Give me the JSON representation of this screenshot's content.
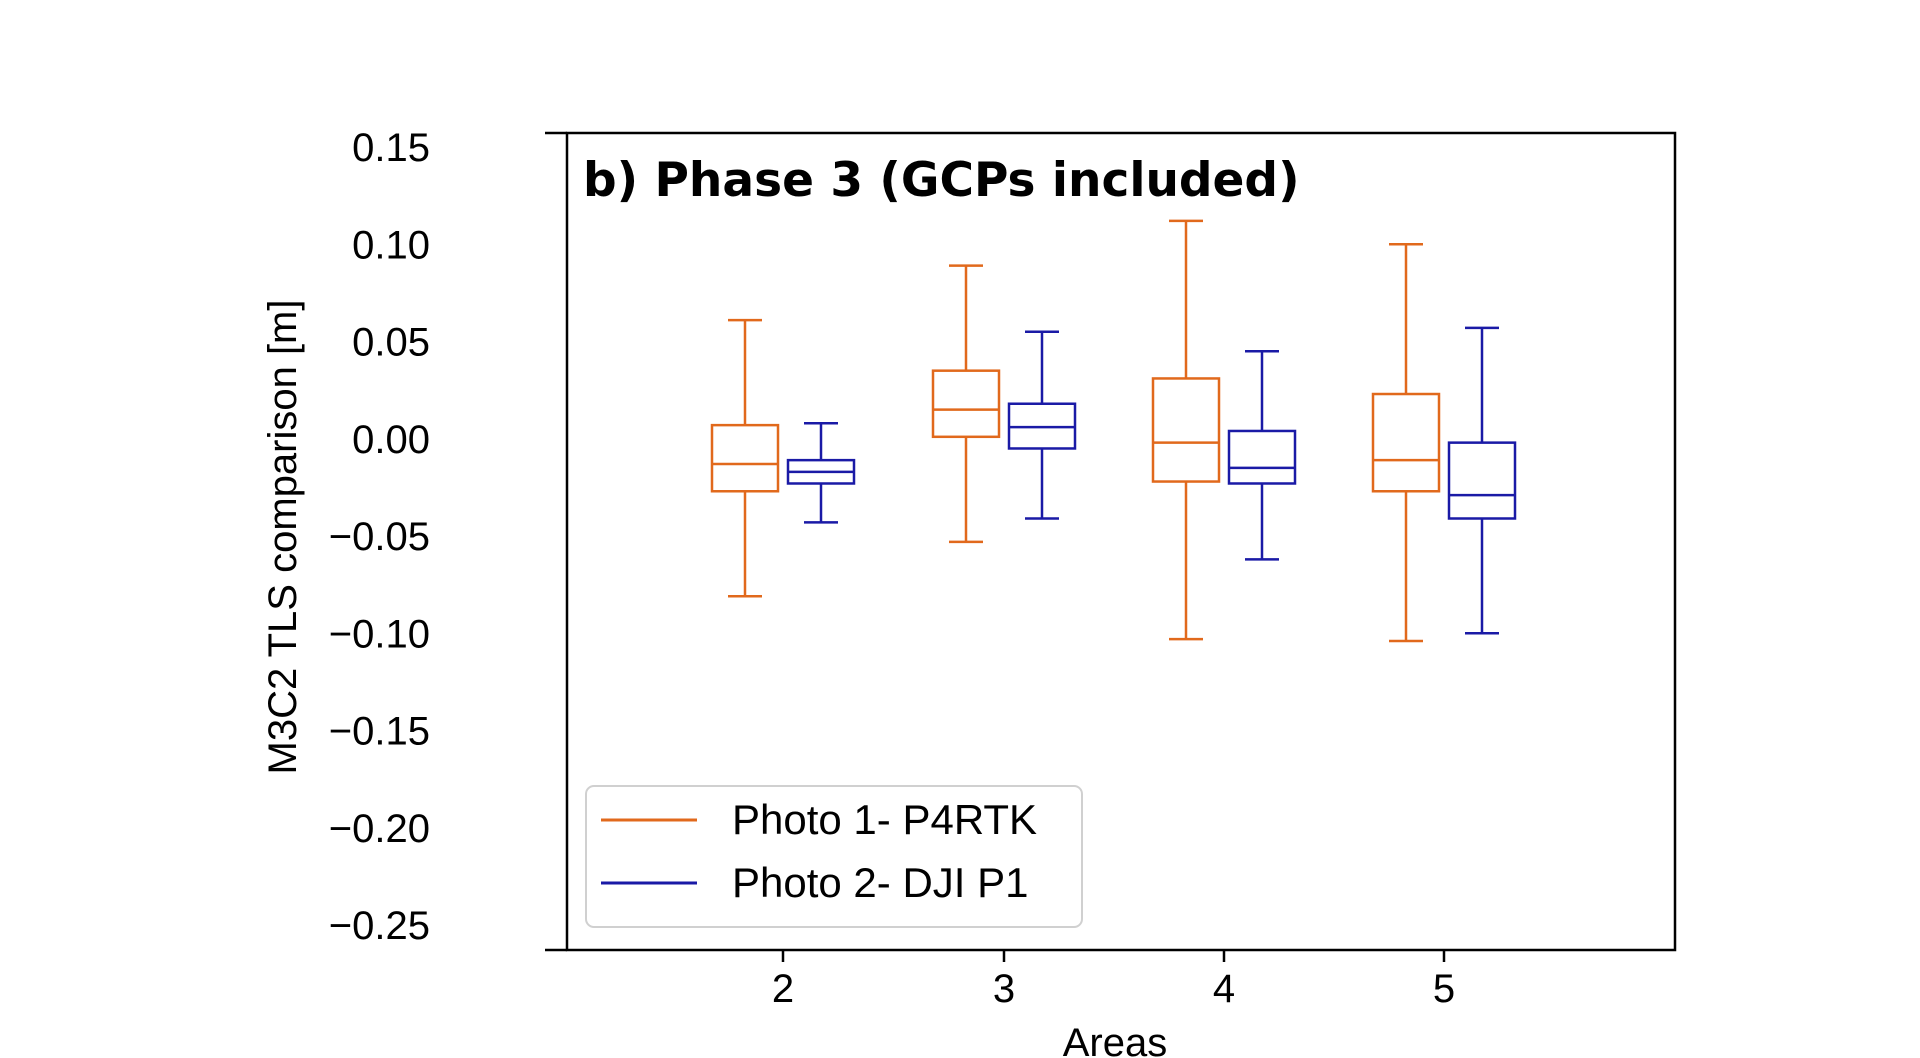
{
  "chart_data": {
    "type": "box",
    "title": "b) Phase 3 (GCPs included)",
    "xlabel": "Areas",
    "ylabel": "M3C2 TLS comparison [m]",
    "ylim": [
      -0.25,
      0.15
    ],
    "y_ticks": [
      "0.15",
      "0.10",
      "0.05",
      "0.00",
      "−0.05",
      "−0.10",
      "−0.15",
      "−0.20",
      "−0.25"
    ],
    "y_tick_values": [
      0.15,
      0.1,
      0.05,
      0.0,
      -0.05,
      -0.1,
      -0.15,
      -0.2,
      -0.25
    ],
    "categories": [
      "2",
      "3",
      "4",
      "5"
    ],
    "legend_position": "lower-left",
    "series": [
      {
        "name": "Photo 1- P4RTK",
        "color": "#e1691c",
        "boxes": [
          {
            "category": "2",
            "whisker_low": -0.081,
            "q1": -0.027,
            "median": -0.013,
            "q3": 0.007,
            "whisker_high": 0.061
          },
          {
            "category": "3",
            "whisker_low": -0.053,
            "q1": 0.001,
            "median": 0.015,
            "q3": 0.035,
            "whisker_high": 0.089
          },
          {
            "category": "4",
            "whisker_low": -0.103,
            "q1": -0.022,
            "median": -0.002,
            "q3": 0.031,
            "whisker_high": 0.112
          },
          {
            "category": "5",
            "whisker_low": -0.104,
            "q1": -0.027,
            "median": -0.011,
            "q3": 0.023,
            "whisker_high": 0.1
          }
        ]
      },
      {
        "name": "Photo 2- DJI P1",
        "color": "#1a1aa6",
        "boxes": [
          {
            "category": "2",
            "whisker_low": -0.043,
            "q1": -0.023,
            "median": -0.017,
            "q3": -0.011,
            "whisker_high": 0.008
          },
          {
            "category": "3",
            "whisker_low": -0.041,
            "q1": -0.005,
            "median": 0.006,
            "q3": 0.018,
            "whisker_high": 0.055
          },
          {
            "category": "4",
            "whisker_low": -0.062,
            "q1": -0.023,
            "median": -0.015,
            "q3": 0.004,
            "whisker_high": 0.045
          },
          {
            "category": "5",
            "whisker_low": -0.1,
            "q1": -0.041,
            "median": -0.029,
            "q3": -0.002,
            "whisker_high": 0.057
          }
        ]
      }
    ]
  }
}
